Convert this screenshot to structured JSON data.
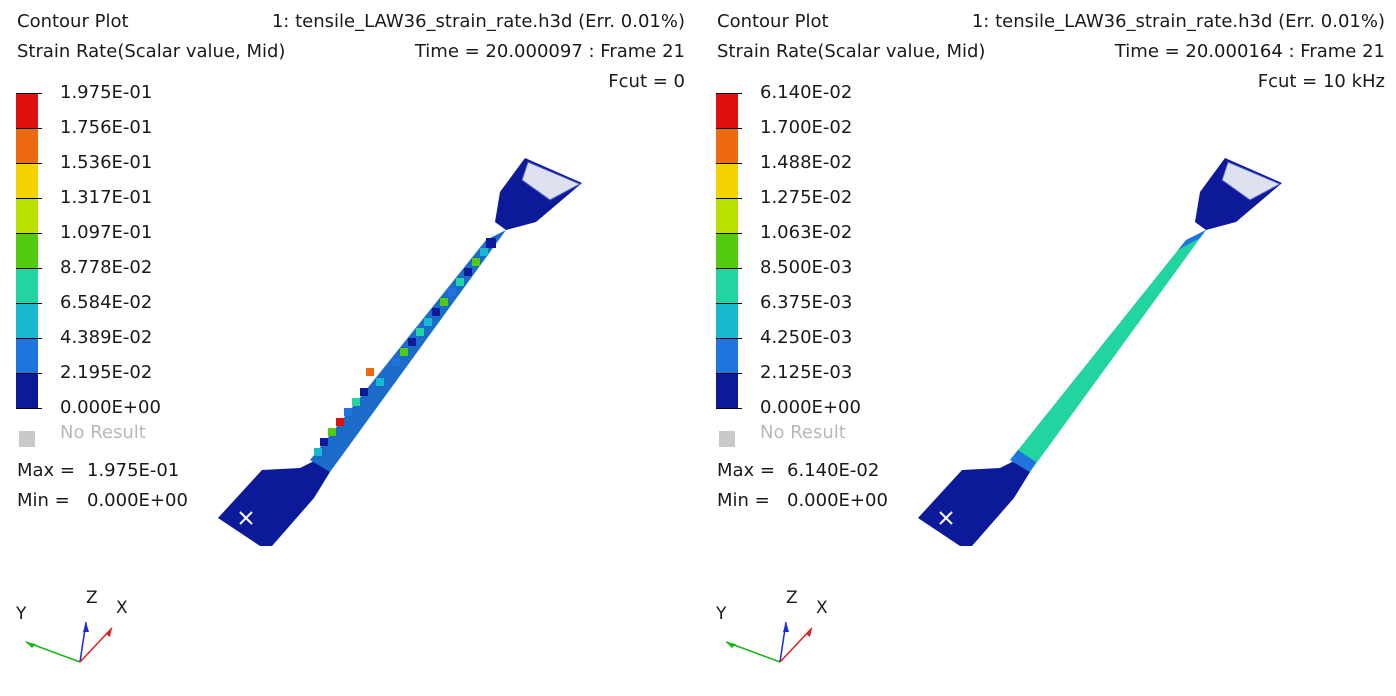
{
  "panels": [
    {
      "title": "Contour Plot",
      "subtitle": "Strain Rate(Scalar value, Mid)",
      "file": "1: tensile_LAW36_strain_rate.h3d (Err. 0.01%)",
      "time": "Time = 20.000097 : Frame 21",
      "fcut": "Fcut = 0",
      "legend_labels": [
        "1.975E-01",
        "1.756E-01",
        "1.536E-01",
        "1.317E-01",
        "1.097E-01",
        "8.778E-02",
        "6.584E-02",
        "4.389E-02",
        "2.195E-02",
        "0.000E+00"
      ],
      "no_result": "No Result",
      "max_label": "Max =",
      "max_value": "1.975E-01",
      "min_label": "Min =",
      "min_value": "0.000E+00",
      "axis_y": "Y",
      "axis_z": "Z",
      "axis_x": "X"
    },
    {
      "title": "Contour Plot",
      "subtitle": "Strain Rate(Scalar value, Mid)",
      "file": "1: tensile_LAW36_strain_rate.h3d (Err. 0.01%)",
      "time": "Time = 20.000164 : Frame 21",
      "fcut": "Fcut = 10 kHz",
      "legend_labels": [
        "6.140E-02",
        "1.700E-02",
        "1.488E-02",
        "1.275E-02",
        "1.063E-02",
        "8.500E-03",
        "6.375E-03",
        "4.250E-03",
        "2.125E-03",
        "0.000E+00"
      ],
      "no_result": "No Result",
      "max_label": "Max =",
      "max_value": "6.140E-02",
      "min_label": "Min =",
      "min_value": "0.000E+00",
      "axis_y": "Y",
      "axis_z": "Z",
      "axis_x": "X"
    }
  ],
  "colors": {
    "legend_scale": [
      "#e01010",
      "#ee6a10",
      "#f4d300",
      "#b8e000",
      "#52cc10",
      "#18b41e",
      "#22d4a0",
      "#17b8d0",
      "#1f74e0",
      "#0c1a9a"
    ],
    "no_result": "#c9c9c9",
    "axis_x": "#e02020",
    "axis_y": "#18b418",
    "axis_z": "#1a2ad8"
  }
}
